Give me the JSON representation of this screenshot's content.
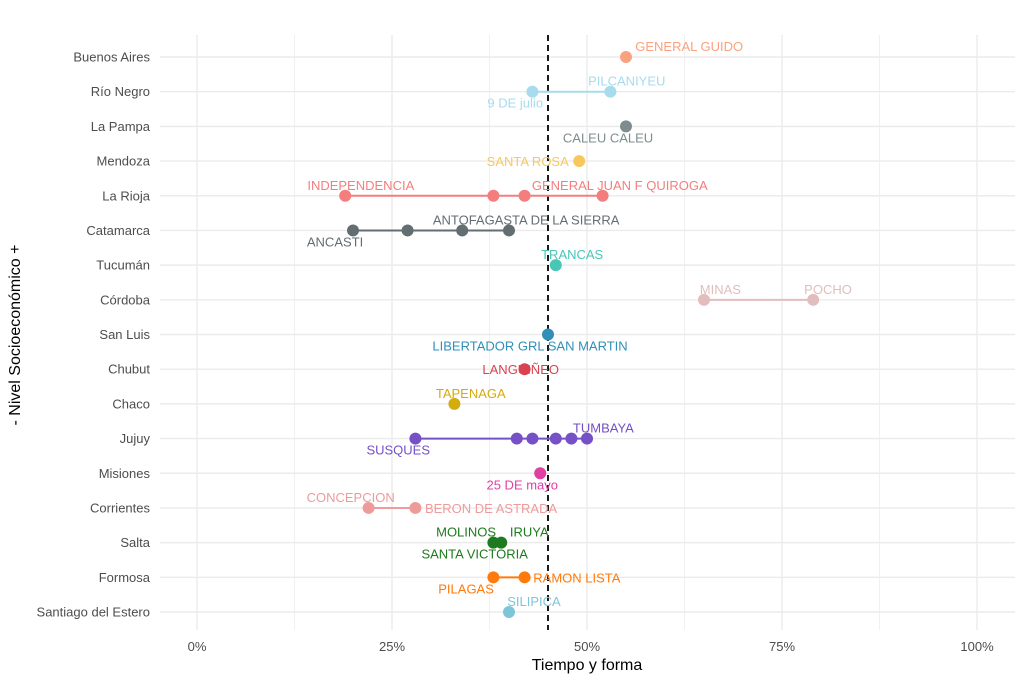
{
  "chart_data": {
    "type": "scatter",
    "subtype": "dumbbell",
    "xlabel": "Tiempo y forma",
    "ylabel": "- Nivel Socioeconómico +",
    "xlim": [
      0,
      100
    ],
    "x_ticks": [
      0,
      25,
      50,
      75,
      100
    ],
    "x_tick_labels": [
      "0%",
      "25%",
      "50%",
      "75%",
      "100%"
    ],
    "grid": true,
    "reference_line": {
      "x": 45,
      "style": "dashed",
      "color": "#000000"
    },
    "rows": [
      {
        "name": "Buenos Aires",
        "color": "#F9A27F",
        "points": [
          55
        ],
        "labels": [
          {
            "text": "GENERAL GUIDO",
            "x": 63.1,
            "pos": "above"
          }
        ]
      },
      {
        "name": "Río Negro",
        "color": "#A7DBEE",
        "points": [
          43,
          53
        ],
        "labels": [
          {
            "text": "PILCANIYEU",
            "x": 55.1,
            "pos": "above"
          },
          {
            "text": "9 DE julio",
            "x": 40.8,
            "pos": "below"
          }
        ]
      },
      {
        "name": "La Pampa",
        "color": "#7F8C8D",
        "points": [
          55
        ],
        "labels": [
          {
            "text": "CALEU CALEU",
            "x": 52.7,
            "pos": "below"
          }
        ]
      },
      {
        "name": "Mendoza",
        "color": "#F6C85F",
        "points": [
          49
        ],
        "labels": [
          {
            "text": "SANTA ROSA",
            "x": 42.4,
            "pos": "on"
          }
        ]
      },
      {
        "name": "La Rioja",
        "color": "#F47E7E",
        "points": [
          19,
          38,
          42,
          52
        ],
        "labels": [
          {
            "text": "INDEPENDENCIA",
            "x": 21.0,
            "pos": "above"
          },
          {
            "text": "GENERAL JUAN F QUIROGA",
            "x": 54.2,
            "pos": "above"
          }
        ]
      },
      {
        "name": "Catamarca",
        "color": "#636E72",
        "points": [
          20,
          27,
          34,
          40
        ],
        "labels": [
          {
            "text": "ANTOFAGASTA DE LA SIERRA",
            "x": 42.2,
            "pos": "above"
          },
          {
            "text": "ANCASTI",
            "x": 17.7,
            "pos": "below"
          }
        ]
      },
      {
        "name": "Tucumán",
        "color": "#48C6B6",
        "points": [
          46
        ],
        "labels": [
          {
            "text": "TRANCAS",
            "x": 48.1,
            "pos": "above"
          }
        ]
      },
      {
        "name": "Córdoba",
        "color": "#E2BDBE",
        "points": [
          65,
          79
        ],
        "labels": [
          {
            "text": "MINAS",
            "x": 67.1,
            "pos": "above"
          },
          {
            "text": "POCHO",
            "x": 80.9,
            "pos": "above"
          }
        ]
      },
      {
        "name": "San Luis",
        "color": "#2F8FB8",
        "points": [
          45
        ],
        "labels": [
          {
            "text": "LIBERTADOR GRL SAN MARTIN",
            "x": 42.7,
            "pos": "below"
          }
        ]
      },
      {
        "name": "Chubut",
        "color": "#D9434F",
        "points": [
          42
        ],
        "labels": [
          {
            "text": "LANGUIÑEO",
            "x": 41.5,
            "pos": "on"
          }
        ]
      },
      {
        "name": "Chaco",
        "color": "#D4AC0D",
        "points": [
          33
        ],
        "labels": [
          {
            "text": "TAPENAGA",
            "x": 35.1,
            "pos": "above"
          }
        ]
      },
      {
        "name": "Jujuy",
        "color": "#7550C6",
        "points": [
          28,
          41,
          43,
          46,
          48,
          50
        ],
        "labels": [
          {
            "text": "TUMBAYA",
            "x": 52.1,
            "pos": "above"
          },
          {
            "text": "SUSQUES",
            "x": 25.8,
            "pos": "below"
          }
        ]
      },
      {
        "name": "Misiones",
        "color": "#E040A4",
        "points": [
          44
        ],
        "labels": [
          {
            "text": "25 DE mayo",
            "x": 41.7,
            "pos": "below"
          }
        ]
      },
      {
        "name": "Corrientes",
        "color": "#EE9B9B",
        "points": [
          22,
          28
        ],
        "labels": [
          {
            "text": "CONCEPCION",
            "x": 19.7,
            "pos": "above"
          },
          {
            "text": "BERON DE ASTRADA",
            "x": 37.7,
            "pos": "on"
          }
        ]
      },
      {
        "name": "Salta",
        "color": "#1E7A1E",
        "points": [
          38,
          39
        ],
        "labels": [
          {
            "text": "MOLINOS",
            "x": 34.5,
            "pos": "above"
          },
          {
            "text": "IRUYA",
            "x": 42.6,
            "pos": "above"
          },
          {
            "text": "SANTA VICTORIA",
            "x": 35.6,
            "pos": "below"
          }
        ]
      },
      {
        "name": "Formosa",
        "color": "#FF7A0A",
        "points": [
          38,
          42
        ],
        "labels": [
          {
            "text": "PILAGAS",
            "x": 34.5,
            "pos": "below"
          },
          {
            "text": "RAMON LISTA",
            "x": 48.7,
            "pos": "on"
          }
        ]
      },
      {
        "name": "Santiago del Estero",
        "color": "#7EC5D9",
        "points": [
          40
        ],
        "labels": [
          {
            "text": "SILIPICA",
            "x": 43.2,
            "pos": "above"
          }
        ]
      }
    ]
  }
}
